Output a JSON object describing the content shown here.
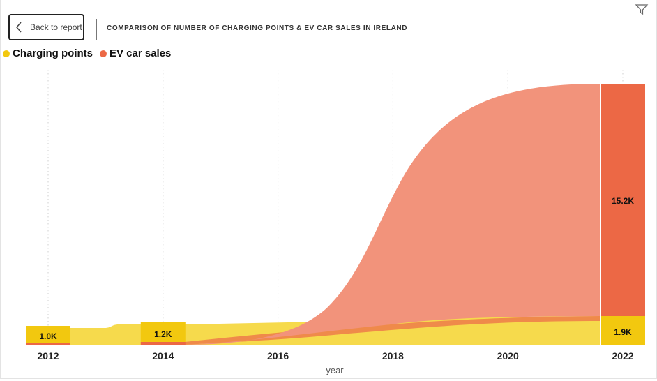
{
  "header": {
    "back_label": "Back to report",
    "title": "COMPARISON OF NUMBER OF CHARGING POINTS & EV CAR SALES IN IRELAND"
  },
  "icons": {
    "back": "chevron-left-icon",
    "filter": "filter-icon"
  },
  "colors": {
    "charging_bar": "#F2C80F",
    "charging_ribbon": "#F6DA4C",
    "ev_bar": "#EC6845",
    "ev_ribbon": "#F2937B",
    "ev_ribbon_low": "#EF8A4A"
  },
  "chart_data": {
    "type": "ribbon",
    "title": "COMPARISON OF NUMBER OF CHARGING POINTS & EV CAR SALES IN IRELAND",
    "xlabel": "year",
    "ylabel": "",
    "categories": [
      "2012",
      "2014",
      "2016",
      "2018",
      "2020",
      "2022"
    ],
    "legend_position": "top-left",
    "series": [
      {
        "name": "Charging points",
        "values": [
          1000,
          1200,
          null,
          null,
          null,
          1900
        ],
        "labels": [
          "1.0K",
          "1.2K",
          "",
          "",
          "",
          "1.9K"
        ]
      },
      {
        "name": "EV car sales",
        "values": [
          50,
          170,
          null,
          null,
          null,
          15200
        ],
        "labels": [
          "",
          "",
          "",
          "",
          "",
          "15.2K"
        ]
      }
    ]
  }
}
